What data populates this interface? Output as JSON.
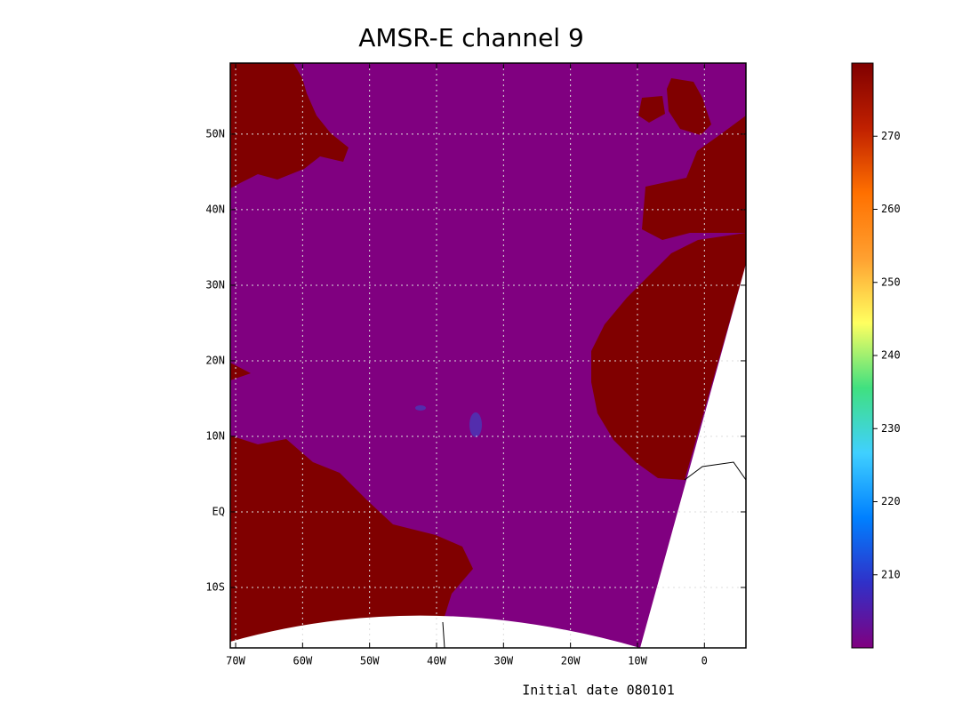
{
  "chart_data": {
    "type": "map",
    "title": "AMSR-E channel 9",
    "footer": "Initial date 080101",
    "xlim": [
      -70.8,
      6.2
    ],
    "xticks": [
      {
        "value": -70,
        "label": "70W"
      },
      {
        "value": -60,
        "label": "60W"
      },
      {
        "value": -50,
        "label": "50W"
      },
      {
        "value": -40,
        "label": "40W"
      },
      {
        "value": -30,
        "label": "30W"
      },
      {
        "value": -20,
        "label": "20W"
      },
      {
        "value": -10,
        "label": "10W"
      },
      0
    ],
    "ylim": [
      -18,
      59.4
    ],
    "yticks": [
      {
        "value": -10,
        "label": "10S"
      },
      {
        "value": 0,
        "label": "EQ"
      },
      {
        "value": 10,
        "label": "10N"
      },
      {
        "value": 20,
        "label": "20N"
      },
      {
        "value": 30,
        "label": "30N"
      },
      {
        "value": 40,
        "label": "40N"
      },
      {
        "value": 50,
        "label": "50N"
      }
    ],
    "grid": true,
    "clim": [
      200,
      280
    ],
    "cticks": [
      210,
      220,
      230,
      240,
      250,
      260,
      270
    ],
    "colormap": [
      "#800080",
      "#3030c8",
      "#0080ff",
      "#40d0ff",
      "#40e080",
      "#ffff60",
      "#ffa030",
      "#ff7000",
      "#c02000",
      "#800000"
    ]
  }
}
